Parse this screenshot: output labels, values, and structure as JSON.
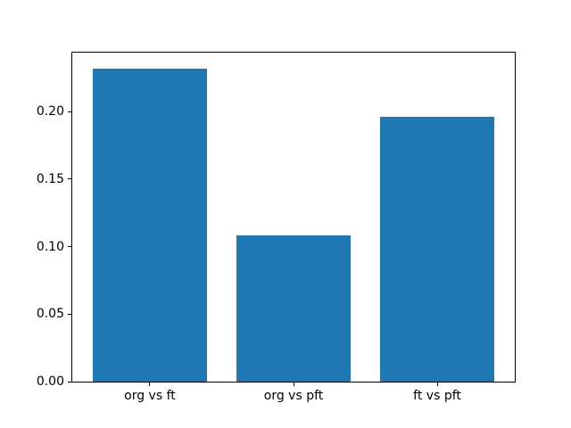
{
  "chart_data": {
    "type": "bar",
    "categories": [
      "org vs ft",
      "org vs pft",
      "ft vs pft"
    ],
    "values": [
      0.232,
      0.108,
      0.196
    ],
    "title": "",
    "xlabel": "",
    "ylabel": "",
    "ylim": [
      0,
      0.2436
    ],
    "xlim": [
      -0.54,
      2.54
    ],
    "yticks": [
      0.0,
      0.05,
      0.1,
      0.15,
      0.2
    ],
    "ytick_format_decimals": 2,
    "bar_width": 0.8,
    "bar_color": "#1f77b4",
    "spine_color": "#000000",
    "tick_color": "#000000",
    "background_color": "#ffffff",
    "grid": false,
    "legend": null
  }
}
